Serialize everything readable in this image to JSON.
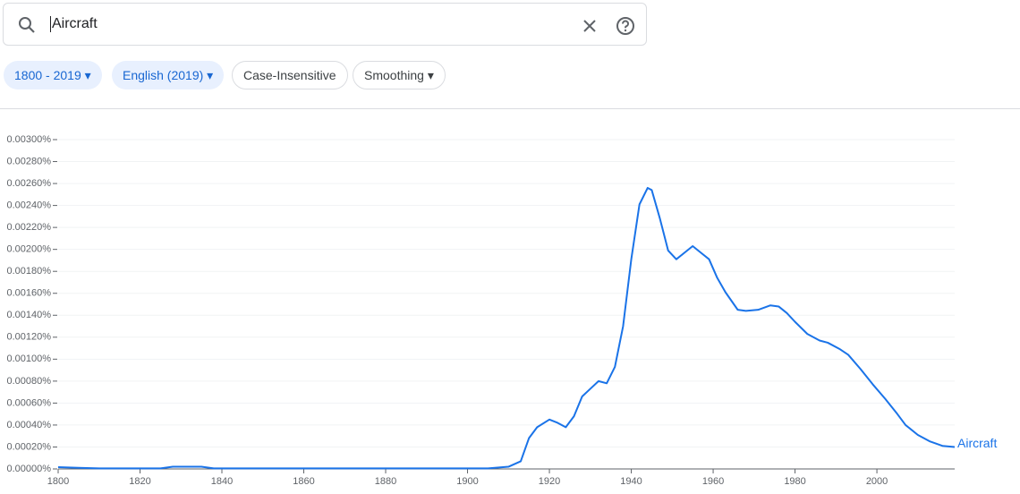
{
  "search": {
    "query": "Aircraft"
  },
  "chips": [
    "1800 - 2019",
    "English (2019)",
    "Case-Insensitive",
    "Smoothing"
  ],
  "chart_data": {
    "type": "line",
    "x": [
      1800,
      1805,
      1810,
      1825,
      1828,
      1835,
      1838,
      1900,
      1905,
      1910,
      1913,
      1915,
      1917,
      1920,
      1922,
      1924,
      1926,
      1928,
      1930,
      1932,
      1934,
      1936,
      1938,
      1940,
      1942,
      1944,
      1945,
      1947,
      1949,
      1951,
      1953,
      1955,
      1957,
      1959,
      1961,
      1963,
      1966,
      1968,
      1971,
      1974,
      1976,
      1978,
      1980,
      1983,
      1986,
      1988,
      1991,
      1993,
      1996,
      1999,
      2002,
      2005,
      2007,
      2010,
      2013,
      2016,
      2019
    ],
    "series": [
      {
        "name": "Aircraft",
        "color": "#1a73e8",
        "values": [
          1.6e-05,
          1e-05,
          5e-06,
          5e-06,
          2e-05,
          2e-05,
          5e-06,
          5e-06,
          5e-06,
          2e-05,
          7e-05,
          0.00028,
          0.00038,
          0.00045,
          0.00042,
          0.00038,
          0.00048,
          0.00066,
          0.00073,
          0.0008,
          0.00078,
          0.00093,
          0.0013,
          0.00191,
          0.00241,
          0.00256,
          0.00254,
          0.00228,
          0.00199,
          0.00191,
          0.00197,
          0.00203,
          0.00197,
          0.00191,
          0.00174,
          0.00161,
          0.00145,
          0.00144,
          0.00145,
          0.00149,
          0.00148,
          0.00142,
          0.00134,
          0.00123,
          0.00117,
          0.00115,
          0.00109,
          0.00104,
          0.00091,
          0.00077,
          0.00064,
          0.0005,
          0.0004,
          0.00031,
          0.00025,
          0.00021,
          0.0002
        ]
      }
    ],
    "xlim": [
      1800,
      2019
    ],
    "xticks": [
      1800,
      1820,
      1840,
      1860,
      1880,
      1900,
      1920,
      1940,
      1960,
      1980,
      2000
    ],
    "ylim": [
      0,
      0.003
    ],
    "yticks": [
      {
        "value": 0,
        "label": "0.00000%"
      },
      {
        "value": 0.0002,
        "label": "0.00020%"
      },
      {
        "value": 0.0004,
        "label": "0.00040%"
      },
      {
        "value": 0.0006,
        "label": "0.00060%"
      },
      {
        "value": 0.0008,
        "label": "0.00080%"
      },
      {
        "value": 0.001,
        "label": "0.00100%"
      },
      {
        "value": 0.0012,
        "label": "0.00120%"
      },
      {
        "value": 0.0014,
        "label": "0.00140%"
      },
      {
        "value": 0.0016,
        "label": "0.00160%"
      },
      {
        "value": 0.0018,
        "label": "0.00180%"
      },
      {
        "value": 0.002,
        "label": "0.00200%"
      },
      {
        "value": 0.0022,
        "label": "0.00220%"
      },
      {
        "value": 0.0024,
        "label": "0.00240%"
      },
      {
        "value": 0.0026,
        "label": "0.00260%"
      },
      {
        "value": 0.0028,
        "label": "0.00280%"
      },
      {
        "value": 0.003,
        "label": "0.00300%"
      }
    ],
    "grid": true
  }
}
